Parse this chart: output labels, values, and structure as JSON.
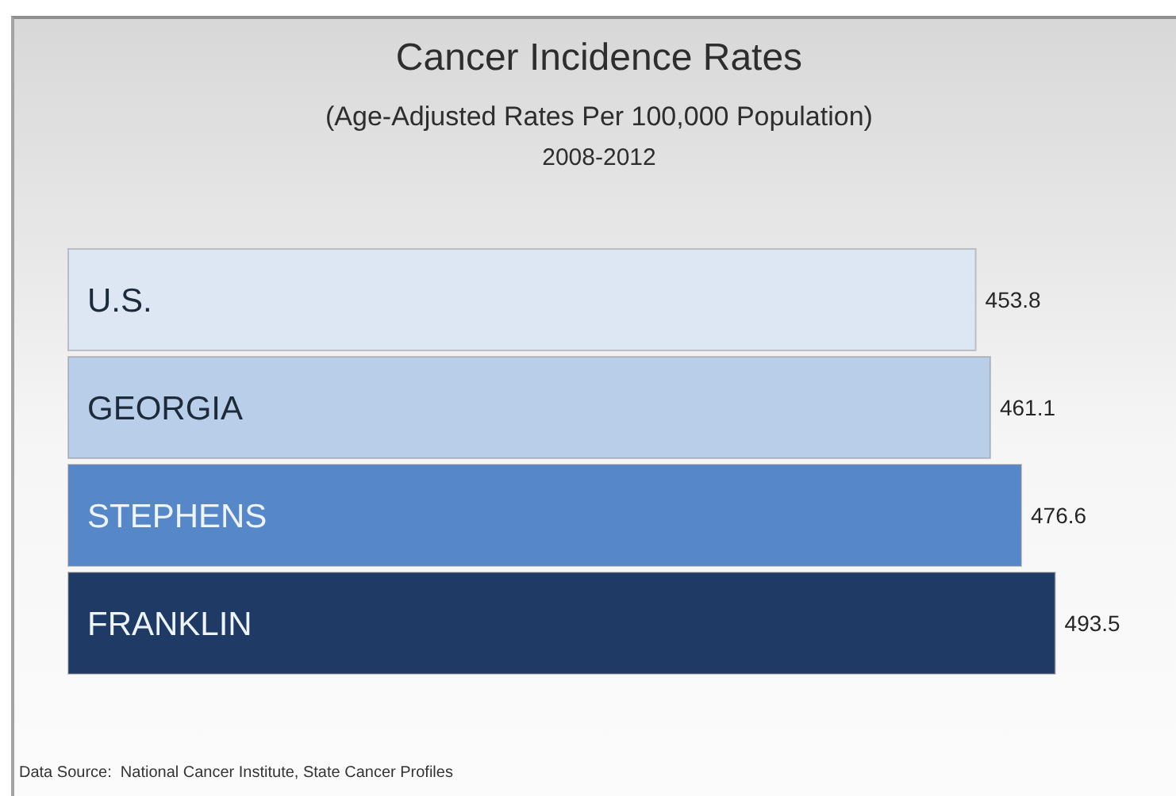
{
  "chart_data": {
    "type": "bar",
    "orientation": "horizontal",
    "title": "Cancer Incidence Rates",
    "subtitle": "(Age-Adjusted Rates Per 100,000 Population)\n2008-2012",
    "categories": [
      "U.S.",
      "GEORGIA",
      "STEPHENS",
      "FRANKLIN"
    ],
    "values": [
      453.8,
      461.1,
      476.6,
      493.5
    ],
    "colors": [
      "#dde7f4",
      "#b9cee8",
      "#5687c9",
      "#1f3a64"
    ],
    "data_labels": true,
    "annotations": [
      "Data Source:  National Cancer Institute, State Cancer Profiles"
    ]
  }
}
